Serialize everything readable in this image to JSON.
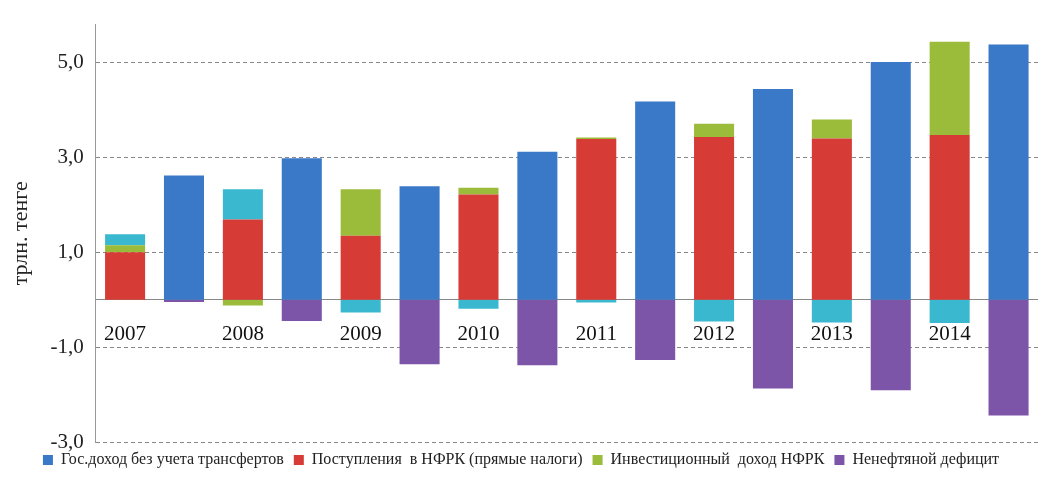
{
  "chart_data": {
    "type": "bar",
    "ylabel": "трлн. тенге",
    "stacked": true,
    "categories": [
      "2007",
      null,
      "2008",
      null,
      "2009",
      null,
      "2010",
      null,
      "2011",
      null,
      "2012",
      null,
      "2013",
      null,
      "2014",
      null
    ],
    "series": [
      {
        "name": "Гос.доход без учета трансфертов",
        "color": "#3a78c8",
        "values": [
          null,
          2.62,
          null,
          2.98,
          null,
          2.39,
          null,
          3.12,
          null,
          4.18,
          null,
          4.44,
          null,
          5.01,
          null,
          5.38
        ]
      },
      {
        "name": "Поступления  в НФРК (прямые налоги)",
        "color": "#d63b36",
        "values": [
          1.0,
          null,
          1.69,
          null,
          1.35,
          null,
          2.22,
          null,
          3.39,
          null,
          3.43,
          null,
          3.4,
          null,
          3.47,
          null
        ]
      },
      {
        "name": "Инвестиционный  доход НФРК",
        "color": "#9bbb3a",
        "values": [
          0.15,
          null,
          -0.12,
          null,
          0.98,
          null,
          0.14,
          null,
          0.03,
          null,
          0.28,
          null,
          0.4,
          null,
          1.97,
          null
        ]
      },
      {
        "name": "Ненефтяной дефицит",
        "color": "#7d55a8",
        "values": [
          null,
          -0.05,
          null,
          -0.45,
          null,
          -1.36,
          null,
          -1.38,
          null,
          -1.27,
          null,
          -1.87,
          null,
          -1.91,
          null,
          -2.44
        ]
      },
      {
        "color": "#3ab8d0",
        "values": [
          0.23,
          null,
          0.64,
          null,
          -0.27,
          null,
          -0.19,
          null,
          -0.06,
          null,
          -0.46,
          null,
          -0.48,
          null,
          -0.49,
          null
        ]
      }
    ],
    "ylim": [
      -3,
      5.8
    ],
    "yticks": [
      {
        "value": -3,
        "label": "-3,0"
      },
      {
        "value": -1,
        "label": "-1,0"
      },
      {
        "value": 1,
        "label": "1,0"
      },
      {
        "value": 3,
        "label": "3,0"
      },
      {
        "value": 5,
        "label": "5,0"
      }
    ],
    "grid": "y",
    "legend": "bottom"
  }
}
